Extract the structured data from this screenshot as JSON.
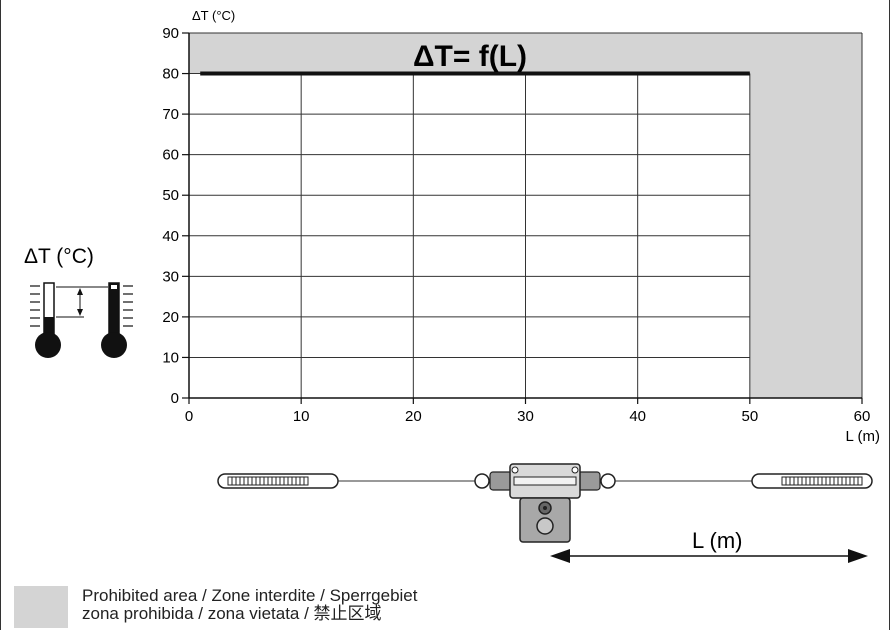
{
  "chart_data": {
    "type": "area",
    "title": "ΔT= f(L)",
    "ylabel": "ΔT (°C)",
    "xlabel": "L (m)",
    "xlim": [
      0,
      60
    ],
    "ylim": [
      0,
      90
    ],
    "xticks": [
      "0",
      "10",
      "20",
      "30",
      "40",
      "50",
      "60"
    ],
    "yticks": [
      "0",
      "10",
      "20",
      "30",
      "40",
      "50",
      "60",
      "70",
      "80",
      "90"
    ],
    "series": [
      {
        "x": [
          1,
          50
        ],
        "y": [
          80,
          80
        ]
      }
    ],
    "prohibited_region": "x > 50 or y > 80",
    "grid": true,
    "colors": {
      "prohibited": "#d4d4d4",
      "line": "#111111",
      "grid": "#333333"
    }
  },
  "side_label": "ΔT (°C)",
  "dimension_label": "L (m)",
  "legend": {
    "line1": "Prohibited area / Zone interdite / Sperrgebiet",
    "line2": "zona prohibida / zona vietata / 禁止区域"
  }
}
